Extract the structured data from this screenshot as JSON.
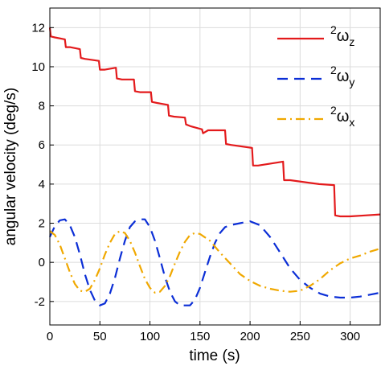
{
  "chart_data": {
    "type": "line",
    "xlabel": "time (s)",
    "ylabel": "angular velocity (deg/s)",
    "xlim": [
      0,
      330
    ],
    "ylim": [
      -3.2,
      13
    ],
    "xticks": [
      0,
      50,
      100,
      150,
      200,
      250,
      300
    ],
    "yticks": [
      -2,
      0,
      2,
      4,
      6,
      8,
      10,
      12
    ],
    "grid": true,
    "legend_position": "top-right",
    "series": [
      {
        "name_sup": "2",
        "name_base": "ω",
        "name_sub": "z",
        "color": "#e31a1c",
        "style": "solid",
        "points": [
          [
            0,
            12.0
          ],
          [
            1,
            11.55
          ],
          [
            5,
            11.5
          ],
          [
            15,
            11.4
          ],
          [
            16,
            11.0
          ],
          [
            20,
            11.0
          ],
          [
            30,
            10.9
          ],
          [
            31,
            10.45
          ],
          [
            35,
            10.4
          ],
          [
            49,
            10.3
          ],
          [
            50,
            9.85
          ],
          [
            55,
            9.85
          ],
          [
            66,
            9.95
          ],
          [
            67,
            9.4
          ],
          [
            72,
            9.35
          ],
          [
            84,
            9.35
          ],
          [
            85,
            8.75
          ],
          [
            90,
            8.7
          ],
          [
            101,
            8.7
          ],
          [
            102,
            8.2
          ],
          [
            107,
            8.15
          ],
          [
            118,
            8.05
          ],
          [
            119,
            7.5
          ],
          [
            124,
            7.45
          ],
          [
            135,
            7.4
          ],
          [
            136,
            7.05
          ],
          [
            141,
            6.95
          ],
          [
            152,
            6.8
          ],
          [
            153,
            6.6
          ],
          [
            158,
            6.75
          ],
          [
            175,
            6.75
          ],
          [
            176,
            6.05
          ],
          [
            181,
            6.0
          ],
          [
            202,
            5.85
          ],
          [
            203,
            4.95
          ],
          [
            208,
            4.95
          ],
          [
            233,
            5.15
          ],
          [
            234,
            4.2
          ],
          [
            240,
            4.2
          ],
          [
            269,
            4.0
          ],
          [
            284,
            3.95
          ],
          [
            285,
            2.4
          ],
          [
            290,
            2.35
          ],
          [
            300,
            2.35
          ],
          [
            315,
            2.4
          ],
          [
            330,
            2.45
          ]
        ]
      },
      {
        "name_sup": "2",
        "name_base": "ω",
        "name_sub": "y",
        "color": "#0b2ed6",
        "style": "dashed",
        "points": [
          [
            0,
            1.3
          ],
          [
            5,
            1.85
          ],
          [
            10,
            2.15
          ],
          [
            15,
            2.2
          ],
          [
            20,
            1.9
          ],
          [
            25,
            1.3
          ],
          [
            30,
            0.4
          ],
          [
            35,
            -0.6
          ],
          [
            40,
            -1.4
          ],
          [
            45,
            -1.95
          ],
          [
            50,
            -2.2
          ],
          [
            55,
            -2.1
          ],
          [
            60,
            -1.6
          ],
          [
            65,
            -0.8
          ],
          [
            70,
            0.2
          ],
          [
            75,
            1.1
          ],
          [
            80,
            1.8
          ],
          [
            85,
            2.1
          ],
          [
            90,
            2.2
          ],
          [
            95,
            2.2
          ],
          [
            100,
            1.8
          ],
          [
            105,
            1.1
          ],
          [
            110,
            0.2
          ],
          [
            115,
            -0.75
          ],
          [
            120,
            -1.5
          ],
          [
            125,
            -2.0
          ],
          [
            130,
            -2.2
          ],
          [
            140,
            -2.2
          ],
          [
            145,
            -1.9
          ],
          [
            150,
            -1.3
          ],
          [
            155,
            -0.5
          ],
          [
            160,
            0.3
          ],
          [
            165,
            1.0
          ],
          [
            170,
            1.5
          ],
          [
            175,
            1.8
          ],
          [
            180,
            1.9
          ],
          [
            190,
            2.0
          ],
          [
            200,
            2.1
          ],
          [
            210,
            1.9
          ],
          [
            220,
            1.3
          ],
          [
            230,
            0.5
          ],
          [
            240,
            -0.3
          ],
          [
            250,
            -0.9
          ],
          [
            260,
            -1.3
          ],
          [
            270,
            -1.6
          ],
          [
            280,
            -1.75
          ],
          [
            290,
            -1.8
          ],
          [
            300,
            -1.8
          ],
          [
            310,
            -1.75
          ],
          [
            320,
            -1.65
          ],
          [
            330,
            -1.55
          ]
        ]
      },
      {
        "name_sup": "2",
        "name_base": "ω",
        "name_sub": "x",
        "color": "#f0a800",
        "style": "dashdot",
        "points": [
          [
            0,
            1.6
          ],
          [
            5,
            1.4
          ],
          [
            10,
            0.9
          ],
          [
            15,
            0.2
          ],
          [
            20,
            -0.5
          ],
          [
            25,
            -1.1
          ],
          [
            30,
            -1.45
          ],
          [
            35,
            -1.5
          ],
          [
            40,
            -1.35
          ],
          [
            45,
            -0.9
          ],
          [
            50,
            -0.3
          ],
          [
            55,
            0.4
          ],
          [
            60,
            1.0
          ],
          [
            65,
            1.45
          ],
          [
            70,
            1.6
          ],
          [
            75,
            1.5
          ],
          [
            80,
            1.1
          ],
          [
            85,
            0.5
          ],
          [
            90,
            -0.2
          ],
          [
            95,
            -0.85
          ],
          [
            100,
            -1.3
          ],
          [
            105,
            -1.55
          ],
          [
            110,
            -1.5
          ],
          [
            115,
            -1.2
          ],
          [
            120,
            -0.7
          ],
          [
            125,
            -0.05
          ],
          [
            130,
            0.55
          ],
          [
            135,
            1.05
          ],
          [
            140,
            1.4
          ],
          [
            145,
            1.5
          ],
          [
            150,
            1.45
          ],
          [
            160,
            1.1
          ],
          [
            170,
            0.5
          ],
          [
            180,
            -0.05
          ],
          [
            190,
            -0.6
          ],
          [
            200,
            -0.95
          ],
          [
            210,
            -1.2
          ],
          [
            220,
            -1.35
          ],
          [
            230,
            -1.45
          ],
          [
            240,
            -1.5
          ],
          [
            250,
            -1.45
          ],
          [
            260,
            -1.2
          ],
          [
            270,
            -0.85
          ],
          [
            280,
            -0.4
          ],
          [
            290,
            -0.05
          ],
          [
            300,
            0.2
          ],
          [
            310,
            0.35
          ],
          [
            320,
            0.55
          ],
          [
            330,
            0.7
          ]
        ]
      }
    ]
  }
}
